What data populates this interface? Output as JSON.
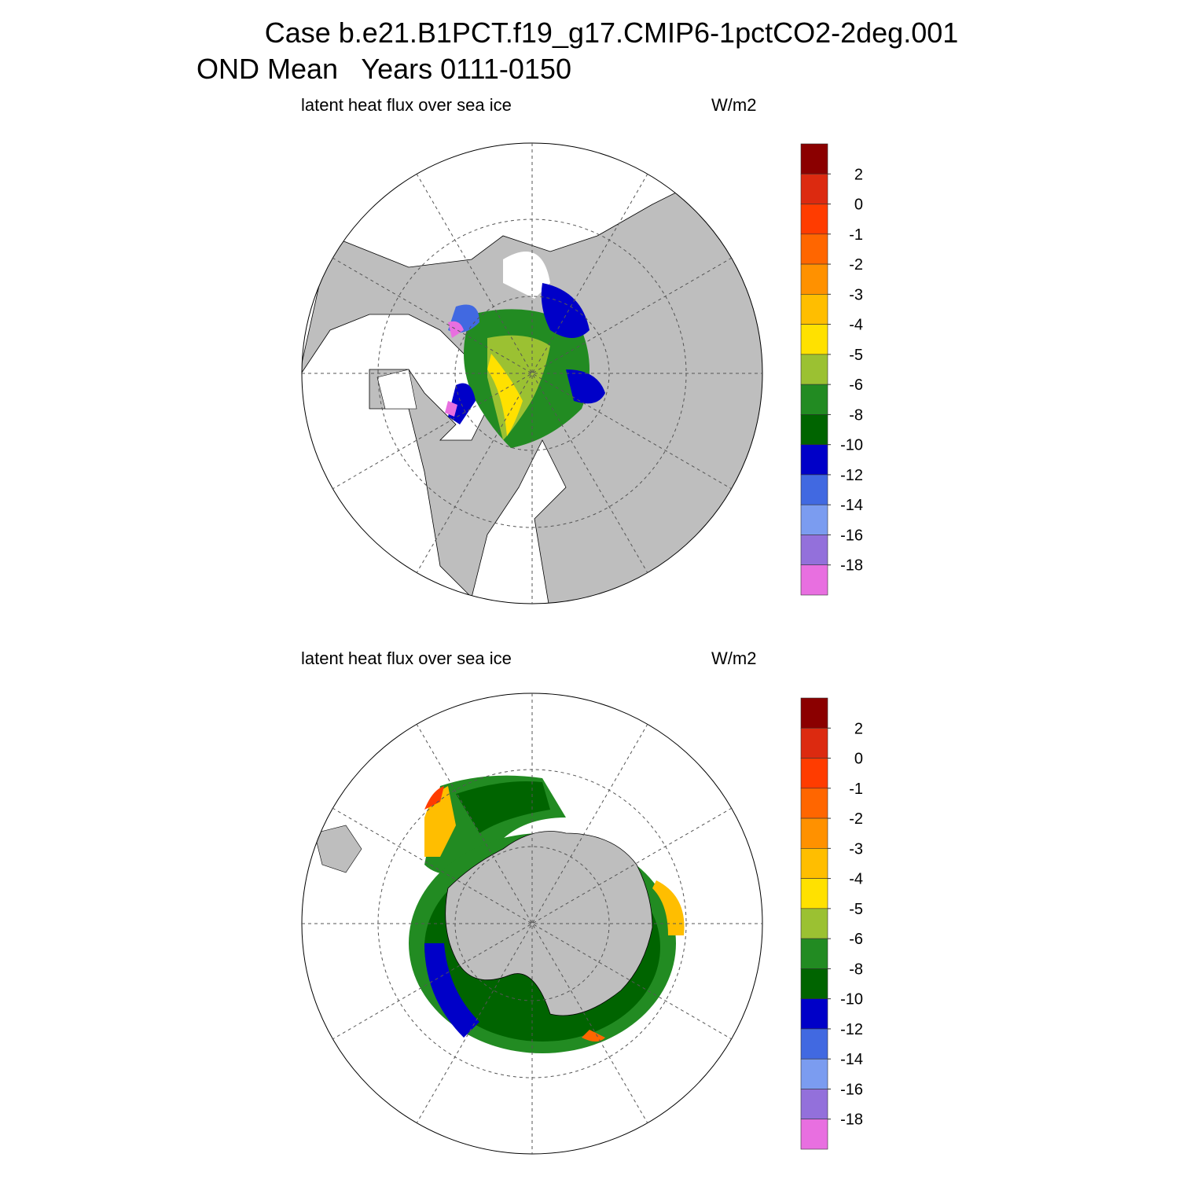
{
  "title": [
    "Case b.e21.B1PCT.f19_g17.CMIP6-1pctCO2-2deg.001",
    "OND Mean   Years 0111-0150"
  ],
  "panels": [
    {
      "subtitle": "latent heat flux over sea ice",
      "units": "W/m2",
      "colorbar": {
        "levels": [
          2,
          0,
          -1,
          -2,
          -3,
          -4,
          -5,
          -6,
          -8,
          -10,
          -12,
          -14,
          -16,
          -18
        ],
        "colors": [
          "#8b0000",
          "#dc2a10",
          "#ff3c00",
          "#ff6600",
          "#ff9100",
          "#ffbe00",
          "#ffe100",
          "#9bc132",
          "#228b22",
          "#006400",
          "#0000c8",
          "#4169e1",
          "#7b9cf0",
          "#9370db",
          "#e86fe0"
        ]
      }
    },
    {
      "subtitle": "latent heat flux over sea ice",
      "units": "W/m2",
      "colorbar": {
        "levels": [
          2,
          0,
          -1,
          -2,
          -3,
          -4,
          -5,
          -6,
          -8,
          -10,
          -12,
          -14,
          -16,
          -18
        ],
        "colors": [
          "#8b0000",
          "#dc2a10",
          "#ff3c00",
          "#ff6600",
          "#ff9100",
          "#ffbe00",
          "#ffe100",
          "#9bc132",
          "#228b22",
          "#006400",
          "#0000c8",
          "#4169e1",
          "#7b9cf0",
          "#9370db",
          "#e86fe0"
        ]
      }
    }
  ]
}
